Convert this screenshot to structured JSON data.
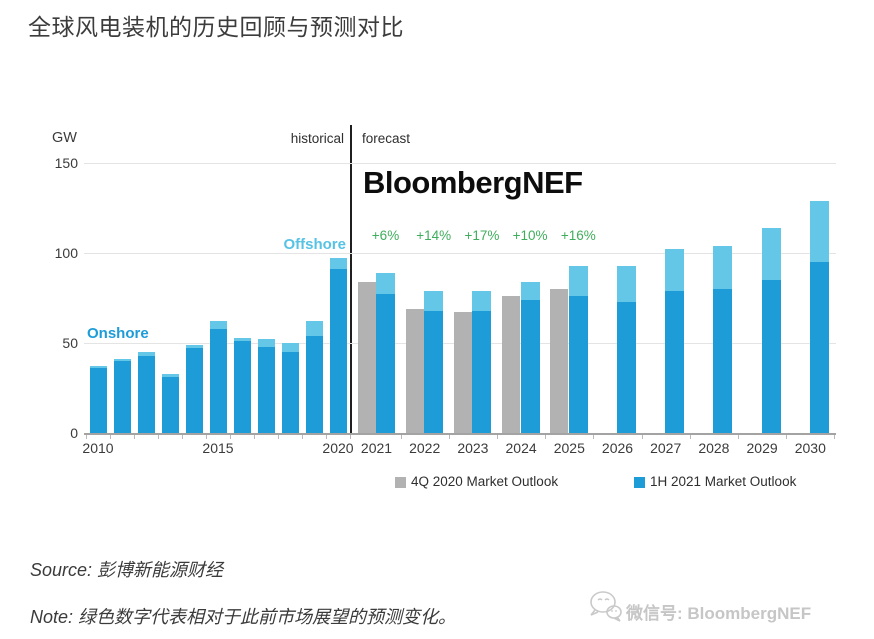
{
  "page": {
    "title": "全球风电装机的历史回顾与预测对比",
    "source_line": "Source: 彭博新能源财经",
    "note_line": "Note: 绿色数字代表相对于此前市场展望的预测变化。",
    "wechat_watermark": "微信号: BloombergNEF"
  },
  "chart_data": {
    "type": "bar",
    "watermark": "BloombergNEF",
    "unit_label": "GW",
    "ylim": [
      0,
      150
    ],
    "y_ticks": [
      0,
      50,
      100,
      150
    ],
    "grid": true,
    "legend_position": "bottom",
    "section_labels": {
      "historical": "historical",
      "forecast": "forecast"
    },
    "series_labels": {
      "onshore": "Onshore",
      "offshore": "Offshore"
    },
    "legend": [
      {
        "label": "4Q 2020 Market Outlook",
        "color": "#b2b2b2"
      },
      {
        "label": "1H 2021 Market Outlook",
        "color": "#1d9cd8"
      }
    ],
    "historical": {
      "years": [
        "2010",
        "2011",
        "2012",
        "2013",
        "2014",
        "2015",
        "2016",
        "2017",
        "2018",
        "2019",
        "2020"
      ],
      "x_tick_labels": [
        "2010",
        "2015",
        "2020"
      ],
      "onshore_gw": [
        36,
        40,
        43,
        31,
        47,
        58,
        51,
        48,
        45,
        54,
        91
      ],
      "offshore_gw": [
        1,
        1,
        2,
        2,
        2,
        4,
        2,
        4,
        5,
        8,
        6
      ]
    },
    "forecast": {
      "years": [
        "2021",
        "2022",
        "2023",
        "2024",
        "2025",
        "2026",
        "2027",
        "2028",
        "2029",
        "2030"
      ],
      "outlook_4q2020_gw": [
        84,
        69,
        67,
        76,
        80,
        null,
        null,
        null,
        null,
        null
      ],
      "onshore_1h2021_gw": [
        77,
        68,
        68,
        74,
        76,
        73,
        79,
        80,
        85,
        95
      ],
      "offshore_1h2021_gw": [
        12,
        11,
        11,
        10,
        17,
        20,
        23,
        24,
        29,
        34
      ],
      "change_labels": [
        "+6%",
        "+14%",
        "+17%",
        "+10%",
        "+16%"
      ]
    },
    "colors": {
      "onshore": "#1d9cd8",
      "offshore": "#64c7e8",
      "gray_outlook": "#b2b2b2",
      "green_label": "#3fae5c",
      "onshore_text": "#1d9cd8",
      "offshore_text": "#56c2e4"
    }
  }
}
